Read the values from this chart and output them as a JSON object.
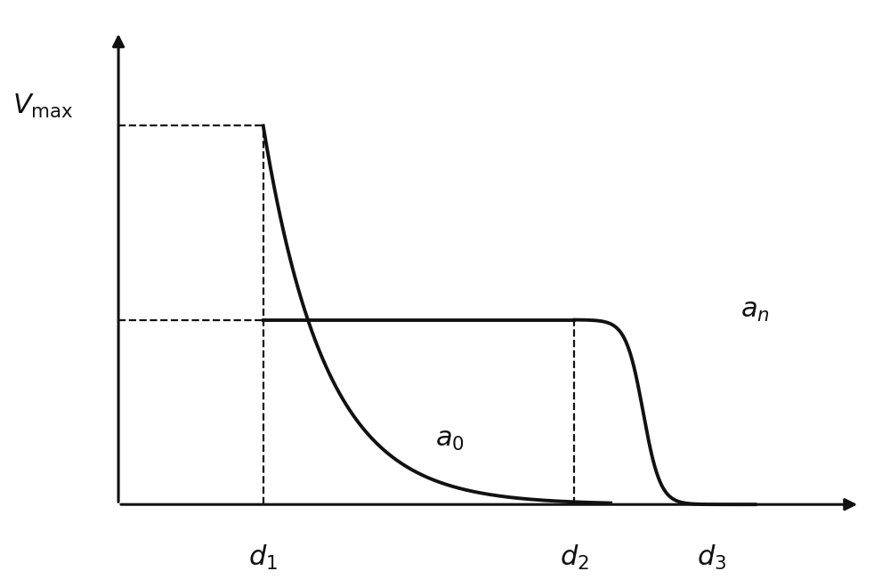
{
  "figsize": [
    10.0,
    6.51
  ],
  "dpi": 100,
  "background_color": "#ffffff",
  "d1": 0.2,
  "d2": 0.63,
  "d3": 0.82,
  "vmax_level": 0.82,
  "flat_level": 0.4,
  "curve_color": "#111111",
  "dashed_color": "#111111",
  "axis_color": "#111111",
  "label_vmax": "$V_{\\mathrm{max}}$",
  "label_a0": "$a_0$",
  "label_an": "$a_n$",
  "label_d1": "$d_1$",
  "label_d2": "$d_2$",
  "label_d3": "$d_3$",
  "font_size_labels": 22,
  "lw_curve": 2.8,
  "lw_axis": 2.2,
  "lw_dash": 1.6
}
